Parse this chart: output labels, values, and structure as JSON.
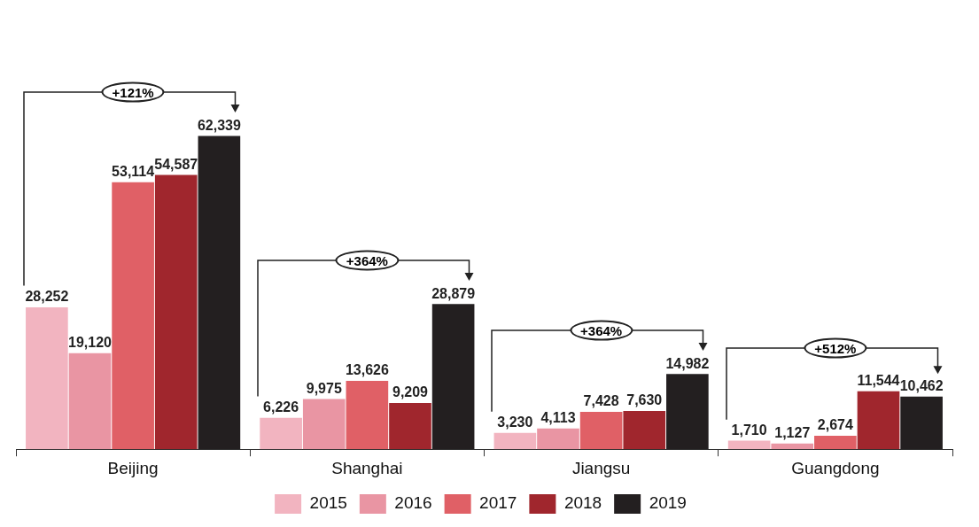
{
  "chart_data": {
    "type": "bar",
    "categories": [
      "Beijing",
      "Shanghai",
      "Jiangsu",
      "Guangdong"
    ],
    "series": [
      {
        "name": "2015",
        "color": "#f2b4c0",
        "values": [
          28252,
          6226,
          3230,
          1710
        ],
        "value_labels": [
          "28,252",
          "6,226",
          "3,230",
          "1,710"
        ]
      },
      {
        "name": "2016",
        "color": "#e995a3",
        "values": [
          19120,
          9975,
          4113,
          1127
        ],
        "value_labels": [
          "19,120",
          "9,975",
          "4,113",
          "1,127"
        ]
      },
      {
        "name": "2017",
        "color": "#e06066",
        "values": [
          53114,
          13626,
          7428,
          2674
        ],
        "value_labels": [
          "53,114",
          "13,626",
          "7,428",
          "2,674"
        ]
      },
      {
        "name": "2018",
        "color": "#a0262d",
        "values": [
          54587,
          9209,
          7630,
          11544
        ],
        "value_labels": [
          "54,587",
          "9,209",
          "7,630",
          "11,544"
        ]
      },
      {
        "name": "2019",
        "color": "#231f20",
        "values": [
          62339,
          28879,
          14982,
          10462
        ],
        "value_labels": [
          "62,339",
          "28,879",
          "14,982",
          "10,462"
        ]
      }
    ],
    "legend": "bottom",
    "annotations": [
      "+121%",
      "+364%",
      "+364%",
      "+512%"
    ]
  }
}
